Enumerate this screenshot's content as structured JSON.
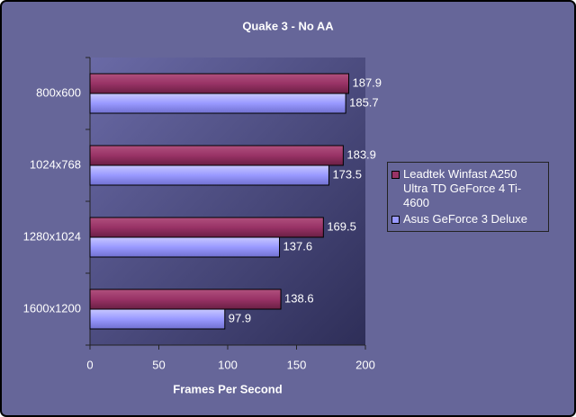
{
  "chart_data": {
    "type": "bar",
    "orientation": "horizontal",
    "title": "Quake 3 - No AA",
    "x_label": "Frames Per Second",
    "categories": [
      "800x600",
      "1024x768",
      "1280x1024",
      "1600x1200"
    ],
    "series": [
      {
        "name": "Leadtek Winfast A250 Ultra TD GeForce 4 Ti-4600",
        "color": "#993366",
        "values": [
          187.9,
          183.9,
          169.5,
          138.6
        ]
      },
      {
        "name": "Asus GeForce 3 Deluxe",
        "color": "#9999ff",
        "values": [
          185.7,
          173.5,
          137.6,
          97.9
        ]
      }
    ],
    "xlim": [
      0,
      200
    ],
    "xticks": [
      0,
      50,
      100,
      150,
      200
    ],
    "legend": "right"
  }
}
